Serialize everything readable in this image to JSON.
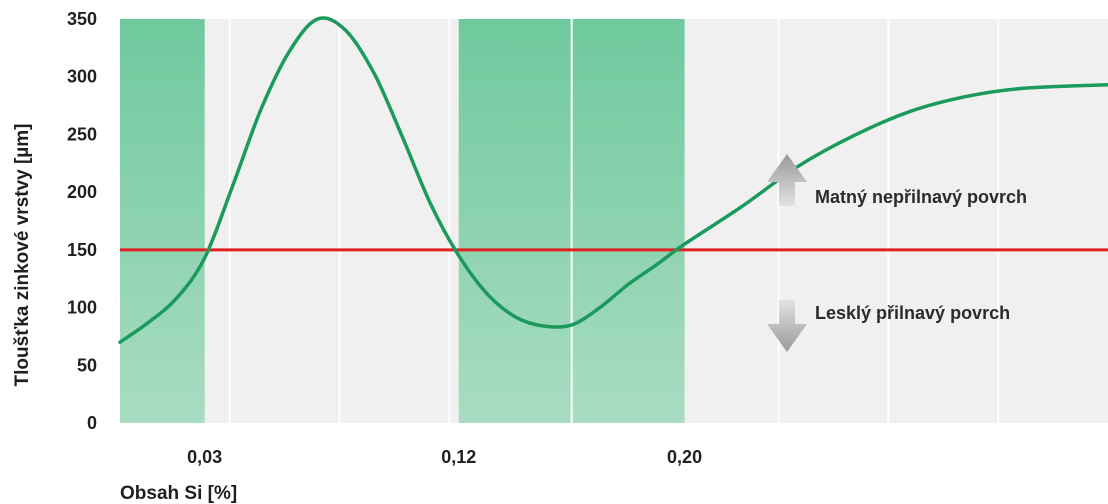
{
  "chart_data": {
    "type": "line",
    "title": "",
    "xlabel": "Obsah Si [%]",
    "ylabel": "Tloušťka zinkové vrstvy [µm]",
    "ylim": [
      0,
      350
    ],
    "yticks": [
      0,
      50,
      100,
      150,
      200,
      250,
      300,
      350
    ],
    "xlim": [
      0.0,
      0.35
    ],
    "xtick_labels": [
      {
        "x": 0.03,
        "label": "0,03"
      },
      {
        "x": 0.12,
        "label": "0,12"
      },
      {
        "x": 0.2,
        "label": "0,20"
      }
    ],
    "grid": "vertical",
    "highlight_bands": [
      {
        "from": 0.0,
        "to": 0.03
      },
      {
        "from": 0.12,
        "to": 0.2
      }
    ],
    "band_divider_x": 0.16,
    "threshold": {
      "y": 150,
      "color": "#e02020"
    },
    "series": [
      {
        "color": "#1a9a5c",
        "x": [
          0.0,
          0.01,
          0.02,
          0.03,
          0.04,
          0.05,
          0.06,
          0.07,
          0.08,
          0.09,
          0.1,
          0.11,
          0.12,
          0.13,
          0.14,
          0.15,
          0.16,
          0.17,
          0.18,
          0.19,
          0.2,
          0.22,
          0.24,
          0.26,
          0.28,
          0.3,
          0.32,
          0.35
        ],
        "y": [
          70,
          87,
          108,
          143,
          206,
          272,
          322,
          350,
          340,
          303,
          248,
          190,
          145,
          112,
          92,
          84,
          85,
          100,
          120,
          137,
          155,
          187,
          222,
          249,
          270,
          283,
          290,
          293
        ]
      }
    ],
    "annotations": [
      {
        "text": "Matný nepřilnavý povrch",
        "direction": "up"
      },
      {
        "text": "Lesklý přilnavý povrch",
        "direction": "down"
      }
    ]
  }
}
